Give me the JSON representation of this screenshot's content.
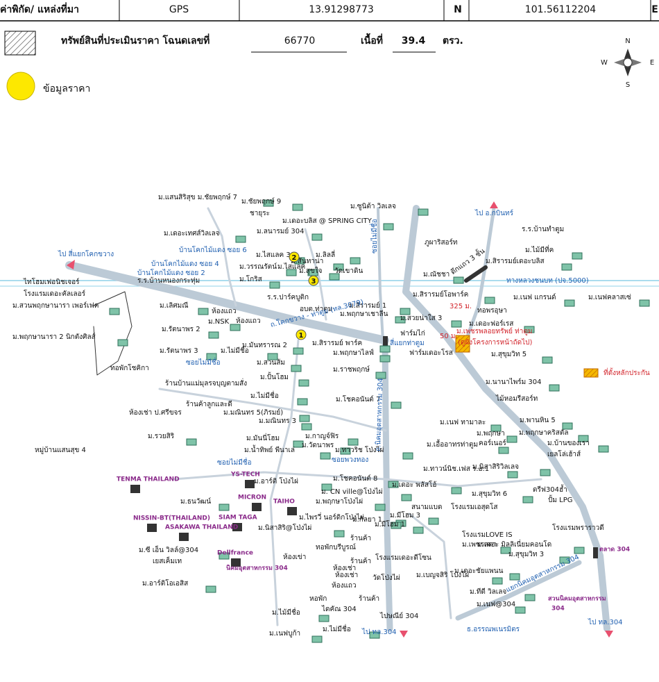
{
  "header": {
    "coord_label": "ค่าพิกัด/ แหล่งที่มา",
    "source": "GPS",
    "lat": "13.91298773",
    "lat_dir": "N",
    "lon": "101.56112204",
    "lon_dir": "E",
    "property_label": "ทรัพย์สินที่ประเมินราคา โฉนดเลขที่",
    "deed_no": "66770",
    "area_label": "เนื้อที่",
    "area": "39.4",
    "area_unit": "ตรว."
  },
  "legend": {
    "price_info": "ข้อมูลราคา"
  },
  "compass": {
    "n": "N",
    "w": "W",
    "e": "E",
    "s": "S"
  },
  "map": {
    "markers": [
      "1",
      "2",
      "3"
    ],
    "labels": [
      "ม.แสนสิริสุข ม.ชัยพฤกษ์ 7",
      "ม.ชัยพฤกษ์ 9",
      "ชายุระ",
      "ม.เดอะเทศส์วิลเลจ",
      "ม.ซูนิต้า วิลเลจ",
      "ม.เดอะบลิส @ SPRING CITY",
      "ม.ลนารมย์ 304",
      "ร.ร.บ้านทำตูม",
      "ภูผาริสอร์ท",
      "ม.ไม้มีที่ค",
      "ม.สิรารมย์เดอะบลิส",
      "ม.ไสแลค 3",
      "ม.ลิลลี่",
      "ม.สันทาน่า",
      "ม.วรรณรัตน์",
      "ม.ไสแลค",
      "ม.สุขใจ",
      "วัดเขาดิน",
      "ตึกแถว 3 ชั้น",
      "ไทโฮมเฟอนิชเจอร์",
      "ม.โกริส",
      "ม.ณัชชา",
      "โรงแรมเดอะคัลเลอร์",
      "ร.ร.ปาร์คบูติก",
      "ม.สิรารมย์โอพาร์ค",
      "ม.เนฟ แกรนด์",
      "ม.เนฟคลาสเซ่",
      "ม.สวนพฤกษานารา เพอร์เฟค",
      "ม.เลิศมณี",
      "อบต.ท่าตูม",
      "ม.สิรารมย์ 1",
      "ม.พฤกษาเชาลีน",
      "ม.สวยน่าใส 3",
      "ทอพรอุษา",
      "ม.เดอะฟอร์เรส",
      "ม.NSK",
      "ห้องแถว",
      "ห้องแถว",
      "ม.รัตนาพร 2",
      "ฟาร์มไก่",
      "ม.พฤกษานารา 2 นิกตังศิลส์",
      "ม.สิรารมย์ พาร์ค",
      "ม.รัตนาพร 3",
      "ม.ไม่มีชื่อ",
      "ม.มันทรารณ 2",
      "ม.พฤกษาไลฟ์",
      "ฟาร์มเดอะโรส",
      "ม.สุขุมวิท 5",
      "ม.สวนส้ม",
      "ม.ราชพฤกษ์",
      "ทอพักโชคิกา",
      "ร้านบ้านแม่มุลรจบุญตามสั่ง",
      "ม.ปั้นโฮม",
      "ม.นานาไพร์ม 304",
      "ไม้หอมรีสอร์ท",
      "ร้านค้าลูกและดี",
      "ม.ไม่มีชื่อ",
      "ม.โชคอนันต์ 7",
      "ห้องเช่า ป.ศรีขจร",
      "ม.มณินทร 5(ภิรมย์)",
      "ม.พานหิน 5",
      "ม.เนฟ ทามาละ",
      "ม.มณินทร 3",
      "ม.กาญจ์ฟิร",
      "ม.พฤกษา",
      "ม.พฤกษาคริสตัล",
      "หมู่บ้านแสนสุข 4",
      "ม.รวยสิริ",
      "ม.มันนี่โฮม",
      "ม.วัดนาพร",
      "ม.ทาวริช โป่งไผ่",
      "ม.เอื้ออาทรท่าตูม",
      "คอร์เนอร์",
      "ม.บ้านของเรา",
      "ม.น้ำทิพย์ พีนาเล่",
      "ม.นิสาสิริวิลเลจ",
      "เยลโล่เฮ้าส์",
      "ม.ทาวน์นิช.เฟส ร.อ.1",
      "ม.อาร์ติ โป่งไผ่",
      "ม.โชคอนันต์ 8",
      "ม.เดอะ พลัสโอ้",
      "ม.ธนวัฒน์",
      "ม. CN ville@โป่งไผ่",
      "ม.สุขุมวิท 6",
      "ดรีฟ304ฮ้ำ",
      "ปั้ม LPG",
      "ม.พฤกษาโป่งไผ่",
      "สนามแบด",
      "โรงแรมเอสุดโส",
      "ม.ไพรวี่ นอร์ดิกโป่งไผ่",
      "ม.มีโฮม 3",
      "ม.กัลยา 1",
      "ม.มีโฮม 1",
      "ม.นิสาสิริ@โป่งไผ่",
      "โรงแรมพราราวดี",
      "โรงแรมLOVE IS",
      "ม.เพชรลดา",
      "ม.เดอะ มิลลิเนี่ยมคอนโด",
      "ร้านค้า",
      "ทอพักบรีบูรณ์",
      "ม.ซี เอ็น วิลล์@304",
      "ม.สุขุมวิท 3",
      "เยสเค็มเท",
      "ห้องเข่า",
      "ร้านค้า",
      "โรงแรมเดอะดีโซน",
      "ห้องเช่า",
      "ห้องเช่า",
      "ม.อาร์ติโอเอสิส",
      "ห้องแถว",
      "วัดโป่งไผ่",
      "ม.เบญจสิริ โป่งไผ่",
      "ม.เดอะชัยแพนน",
      "ม.ทีดี วิลเลจ",
      "ร้านค้า",
      "หอพัก",
      "ไดคัณ 304",
      "ม.ไม้มีชื่อ",
      "ไปษณีย์ 304",
      "ม.เนฟ@304",
      "ม.เนฟบูก้า",
      "ม.ไม่มีชื่อ",
      "ร.ร.บ้านหนองกระทุ่ม",
      "ไป อ.กบินทร์",
      "ไป สี่แยกโคกขวาง",
      "บ้านโคกไม้แดง ซอย 6",
      "บ้านโคกไม้แดง ซอย 4",
      "บ้านโคกไม้แดง ซอย 2",
      "ทางหลวงชนบท (ปจ.5000)",
      "ถ.โคกขวาง - ท่าตูม (ทล.3079)",
      "สี่แยกท่าตูม",
      "ซอยไม่มีชื่อ",
      "ซอยไม่มีชื่อ",
      "ถ.นิคมอุตสาหกรรม 304",
      "ซอยไม่มีชื่อ",
      "ซอยพวงทอง",
      "แยกนิคมอุตสาหกรรม 304",
      "ไป ทล.304",
      "ไป ทล.304",
      "ธ.อรรณพเนรมิตร",
      "325 ม.",
      "50 ม.",
      "ม.เพชรพลอยทรัพย์ ท่าตูม",
      "(ดูผังโครงการหน้าถัดไป)",
      "ที่ตั้งหลักประกัน",
      "ตลาด 304",
      "TENMA THAILAND",
      "YS-TECH",
      "MICRON",
      "TAIHO",
      "NISSIN-BT(THAILAND)",
      "SIAM TAGA",
      "ASAKAWA THAILAND",
      "Dellfrance",
      "นิคมอุตสาหกรรม 304",
      "สวนนิคมอุตสาหกรรม",
      "304"
    ]
  }
}
